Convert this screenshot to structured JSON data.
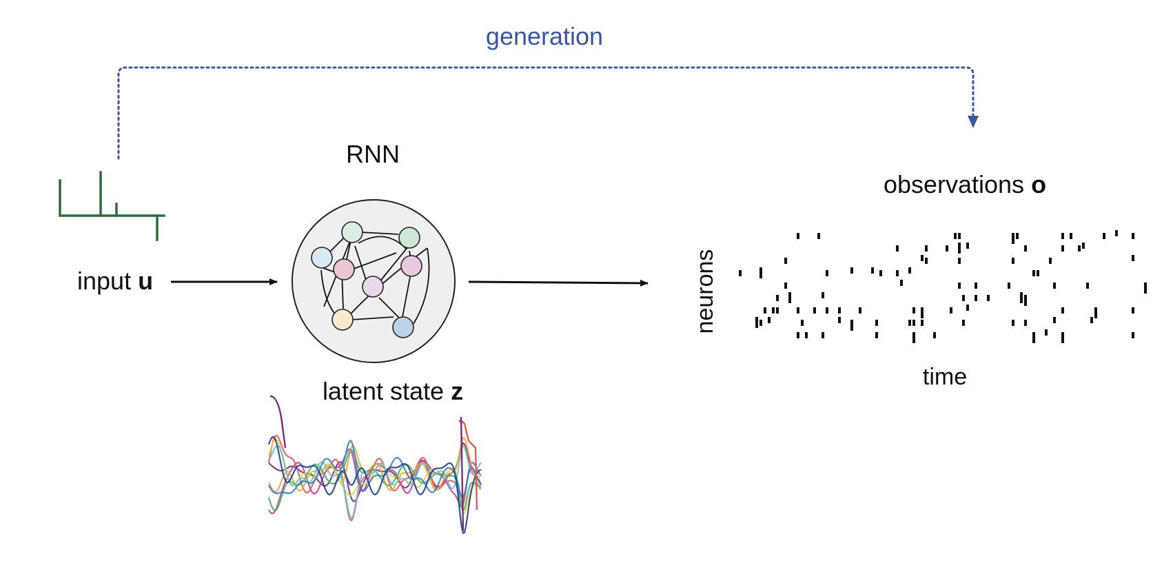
{
  "labels": {
    "generation": "generation",
    "rnn": "RNN",
    "input_text": "input ",
    "input_symbol": "u",
    "latent_text": "latent state ",
    "latent_symbol": "z",
    "observations_text": "observations ",
    "observations_symbol": "o",
    "neurons_axis": "neurons",
    "time_axis": "time"
  },
  "colors": {
    "generation_blue": "#3a55a4",
    "input_green": "#2e6b3a",
    "arrow": "#111111",
    "rnn_circle_fill": "#efefef",
    "node_colors": [
      "#dbe8f5",
      "#d9ede0",
      "#cfe7d6",
      "#ecc7d3",
      "#e7c9e0",
      "#ead8ea",
      "#fbeac7",
      "#bcd2e6"
    ],
    "latent_trace_colors": [
      "#7b2a7b",
      "#c0449b",
      "#e25b5b",
      "#f2a93b",
      "#e9d34a",
      "#4fae6a",
      "#6cc3c8",
      "#3b7fc4",
      "#1f3f8f"
    ]
  },
  "icons": {
    "rnn_network": "recurrent-network-icon",
    "input_signal": "input-pulse-signal",
    "latent_traces": "latent-state-traces",
    "spike_raster": "spike-raster"
  }
}
